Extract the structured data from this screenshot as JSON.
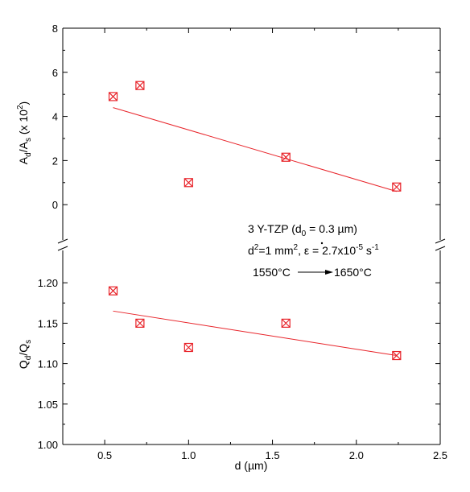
{
  "chart_data": [
    {
      "type": "scatter",
      "panel": "top",
      "x": [
        0.55,
        0.71,
        1.0,
        1.58,
        2.24
      ],
      "values": [
        4.9,
        5.4,
        1.0,
        2.15,
        0.8
      ],
      "fit": {
        "x": [
          0.55,
          2.24
        ],
        "y": [
          4.4,
          0.6
        ]
      },
      "xlim": [
        0.25,
        2.5
      ],
      "ylim": [
        -1.6,
        8
      ],
      "yticks": [
        0,
        2,
        4,
        6,
        8
      ],
      "ytick_labels": [
        "0",
        "2",
        "4",
        "6",
        "8"
      ],
      "ylabel": {
        "pre": "A",
        "sub1": "d",
        "mid": "/A",
        "sub2": "s",
        "post": " (x 10",
        "sup": "2",
        "end": ")"
      },
      "marker_color": "#e8242a",
      "grid": false
    },
    {
      "type": "scatter",
      "panel": "bottom",
      "x": [
        0.55,
        0.71,
        1.0,
        1.58,
        2.24
      ],
      "values": [
        1.19,
        1.15,
        1.12,
        1.15,
        1.11
      ],
      "fit": {
        "x": [
          0.55,
          2.24
        ],
        "y": [
          1.165,
          1.11
        ]
      },
      "xlim": [
        0.25,
        2.5
      ],
      "ylim": [
        1.0,
        1.24
      ],
      "yticks": [
        1.0,
        1.05,
        1.1,
        1.15,
        1.2
      ],
      "ytick_labels": [
        "1.00",
        "1.05",
        "1.10",
        "1.15",
        "1.20"
      ],
      "xticks": [
        0.5,
        1.0,
        1.5,
        2.0,
        2.5
      ],
      "xtick_labels": [
        "0.5",
        "1.0",
        "1.5",
        "2.0",
        "2.5"
      ],
      "xlabel": "d (µm)",
      "ylabel": {
        "pre": "Q",
        "sub1": "d",
        "mid": "/Q",
        "sub2": "s"
      },
      "marker_color": "#e8242a",
      "grid": false
    }
  ],
  "annotations": {
    "line1_a": "3 Y-TZP (d",
    "line1_sub": "0",
    "line1_b": " = 0.3 µm)",
    "line2_a": "d",
    "line2_sup1": "2",
    "line2_b": "=1 mm",
    "line2_sup2": "2",
    "line2_c": ", ε = 2.7x10",
    "line2_sup3": "-5",
    "line2_d": " s",
    "line2_sup4": "-1",
    "line3_a": "1550°C",
    "line3_b": "1650°C"
  }
}
